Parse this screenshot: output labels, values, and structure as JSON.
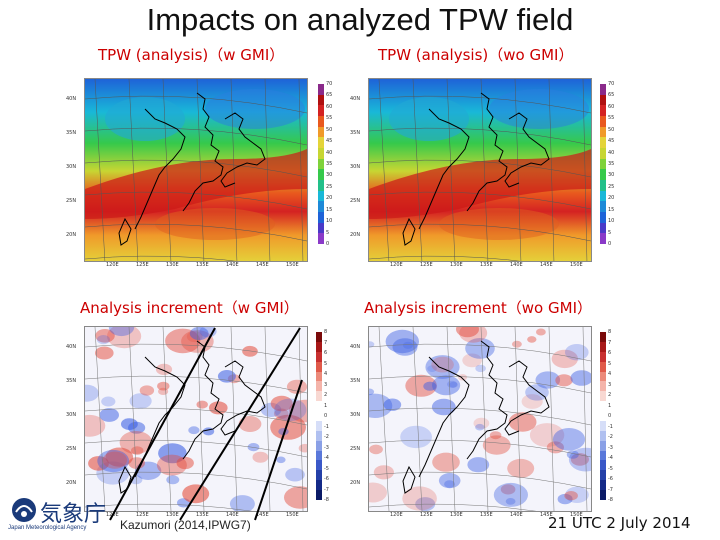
{
  "title": "Impacts on analyzed TPW field",
  "panels": [
    {
      "title": "TPW (analysis)（w GMI）",
      "colorbar": [
        "70",
        "65",
        "60",
        "55",
        "50",
        "45",
        "40",
        "35",
        "30",
        "25",
        "20",
        "15",
        "10",
        "5",
        "0"
      ]
    },
    {
      "title": "TPW (analysis)（wo GMI）",
      "colorbar": [
        "70",
        "65",
        "60",
        "55",
        "50",
        "45",
        "40",
        "35",
        "30",
        "25",
        "20",
        "15",
        "10",
        "5",
        "0"
      ]
    },
    {
      "title": "Analysis increment（w GMI）",
      "colorbar": [
        "8",
        "7",
        "6",
        "5",
        "4",
        "3",
        "2",
        "1",
        "0",
        "-1",
        "-2",
        "-3",
        "-4",
        "-5",
        "-6",
        "-7",
        "-8"
      ]
    },
    {
      "title": "Analysis increment（wo GMI）",
      "colorbar": [
        "8",
        "7",
        "6",
        "5",
        "4",
        "3",
        "2",
        "1",
        "0",
        "-1",
        "-2",
        "-3",
        "-4",
        "-5",
        "-6",
        "-7",
        "-8"
      ]
    }
  ],
  "lat_labels": [
    "40N",
    "35N",
    "30N",
    "25N",
    "20N"
  ],
  "lon_labels": [
    "120E",
    "125E",
    "130E",
    "135E",
    "140E",
    "145E",
    "150E"
  ],
  "credit": "Kazumori (2014,IPWG7)",
  "date": "21 UTC 2 July 2014",
  "logo": {
    "mark": "気象庁",
    "sub": "Japan Meteorological Agency"
  }
}
